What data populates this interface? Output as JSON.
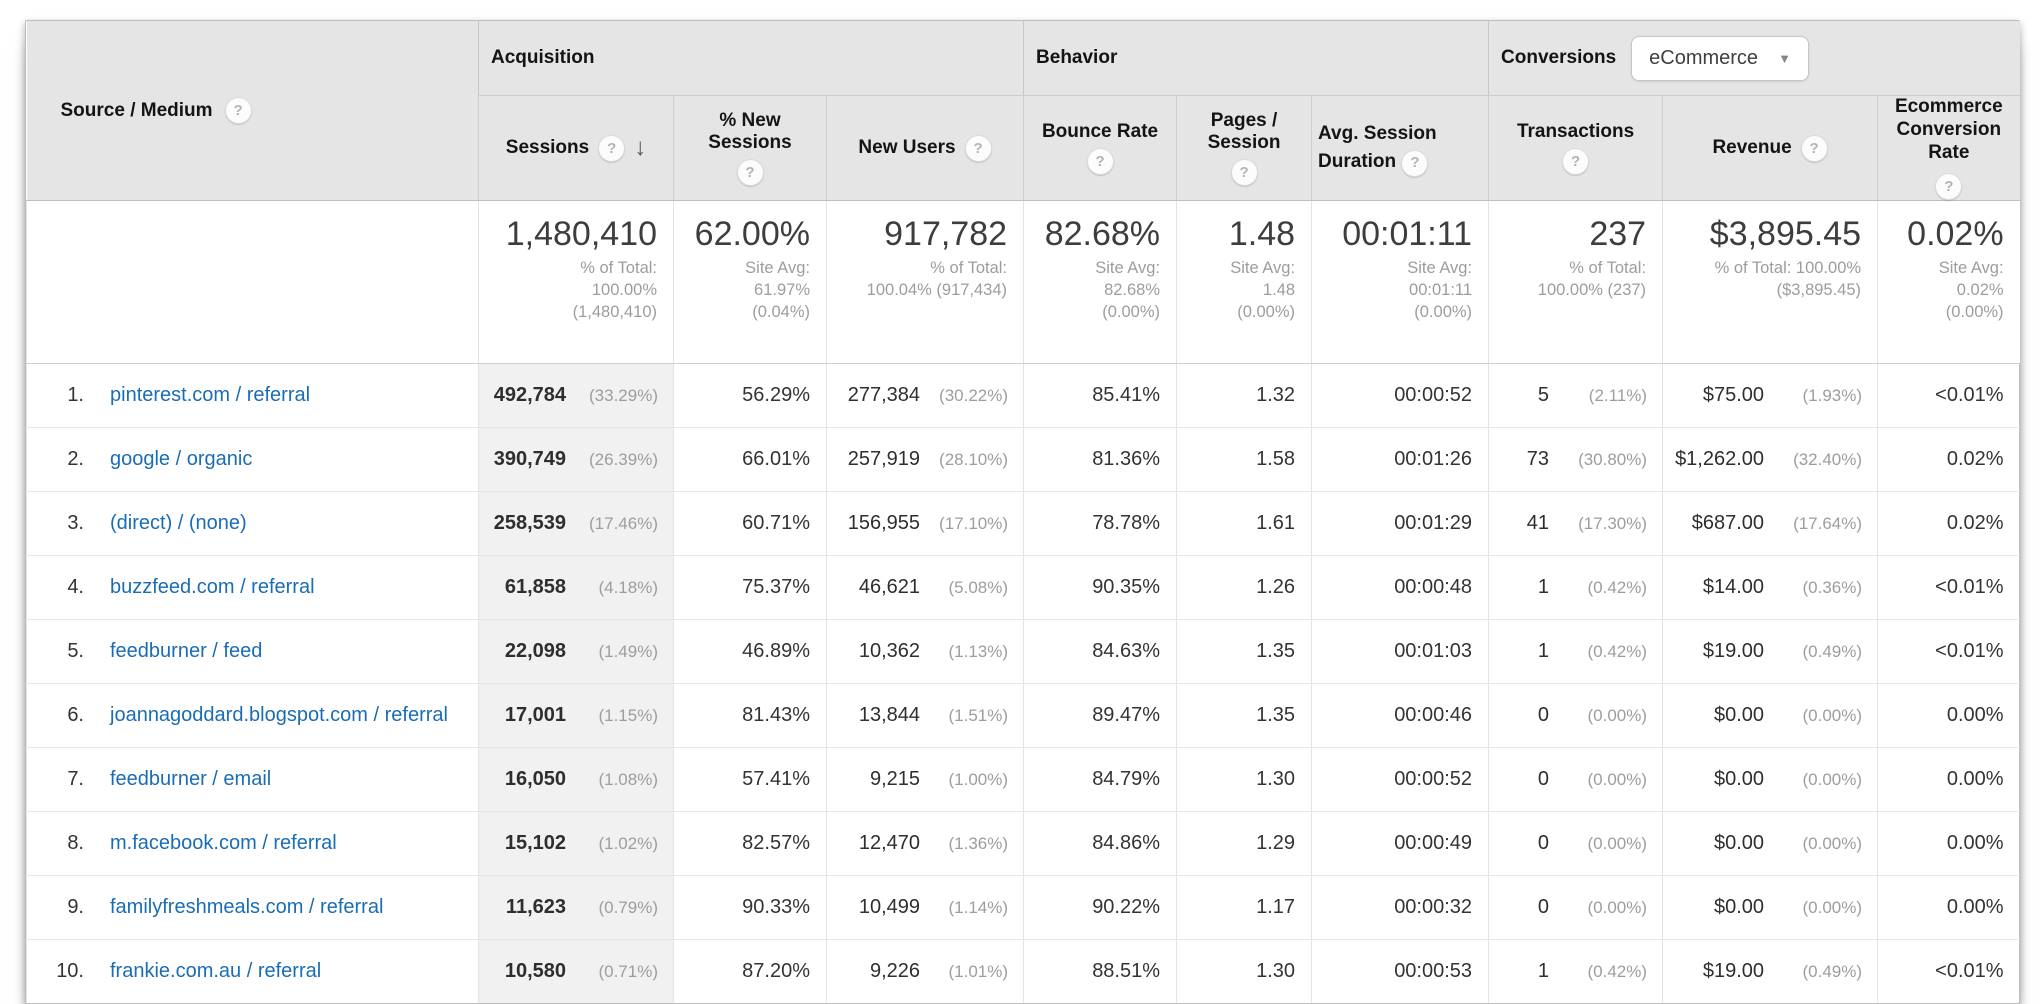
{
  "icons": {
    "help": "?",
    "sort_desc": "↓",
    "caret_down": "▼"
  },
  "table": {
    "dimension_header": "Source / Medium",
    "groups": [
      {
        "label": "Acquisition"
      },
      {
        "label": "Behavior"
      },
      {
        "label": "Conversions",
        "selector_label": "eCommerce"
      }
    ],
    "columns": [
      {
        "label": "Sessions",
        "sorted": "desc"
      },
      {
        "label": "% New Sessions"
      },
      {
        "label": "New Users"
      },
      {
        "label": "Bounce Rate"
      },
      {
        "label": "Pages / Session"
      },
      {
        "label": "Avg. Session Duration"
      },
      {
        "label": "Transactions"
      },
      {
        "label": "Revenue"
      },
      {
        "label": "Ecommerce Conversion Rate"
      }
    ],
    "summary": {
      "sessions": {
        "value": "1,480,410",
        "note_lines": [
          "% of Total:",
          "100.00%",
          "(1,480,410)"
        ]
      },
      "pct_new_sessions": {
        "value": "62.00%",
        "note_lines": [
          "Site Avg:",
          "61.97%",
          "(0.04%)"
        ]
      },
      "new_users": {
        "value": "917,782",
        "note_lines": [
          "% of Total:",
          "100.04% (917,434)"
        ]
      },
      "bounce_rate": {
        "value": "82.68%",
        "note_lines": [
          "Site Avg:",
          "82.68%",
          "(0.00%)"
        ]
      },
      "pages_per_session": {
        "value": "1.48",
        "note_lines": [
          "Site Avg:",
          "1.48",
          "(0.00%)"
        ]
      },
      "avg_session_duration": {
        "value": "00:01:11",
        "note_lines": [
          "Site Avg:",
          "00:01:11",
          "(0.00%)"
        ]
      },
      "transactions": {
        "value": "237",
        "note_lines": [
          "% of Total:",
          "100.00% (237)"
        ]
      },
      "revenue": {
        "value": "$3,895.45",
        "note_lines": [
          "% of Total: 100.00%",
          "($3,895.45)"
        ]
      },
      "ecommerce_conversion_rate": {
        "value": "0.02%",
        "note_lines": [
          "Site Avg:",
          "0.02%",
          "(0.00%)"
        ]
      }
    },
    "rows": [
      {
        "rank": "1.",
        "source_medium": "pinterest.com / referral",
        "sessions": "492,784",
        "sessions_pct": "(33.29%)",
        "pct_new_sessions": "56.29%",
        "new_users": "277,384",
        "new_users_pct": "(30.22%)",
        "bounce_rate": "85.41%",
        "pages_per_session": "1.32",
        "avg_session_duration": "00:00:52",
        "transactions": "5",
        "transactions_pct": "(2.11%)",
        "revenue": "$75.00",
        "revenue_pct": "(1.93%)",
        "ecommerce_conversion_rate": "<0.01%"
      },
      {
        "rank": "2.",
        "source_medium": "google / organic",
        "sessions": "390,749",
        "sessions_pct": "(26.39%)",
        "pct_new_sessions": "66.01%",
        "new_users": "257,919",
        "new_users_pct": "(28.10%)",
        "bounce_rate": "81.36%",
        "pages_per_session": "1.58",
        "avg_session_duration": "00:01:26",
        "transactions": "73",
        "transactions_pct": "(30.80%)",
        "revenue": "$1,262.00",
        "revenue_pct": "(32.40%)",
        "ecommerce_conversion_rate": "0.02%"
      },
      {
        "rank": "3.",
        "source_medium": "(direct) / (none)",
        "sessions": "258,539",
        "sessions_pct": "(17.46%)",
        "pct_new_sessions": "60.71%",
        "new_users": "156,955",
        "new_users_pct": "(17.10%)",
        "bounce_rate": "78.78%",
        "pages_per_session": "1.61",
        "avg_session_duration": "00:01:29",
        "transactions": "41",
        "transactions_pct": "(17.30%)",
        "revenue": "$687.00",
        "revenue_pct": "(17.64%)",
        "ecommerce_conversion_rate": "0.02%"
      },
      {
        "rank": "4.",
        "source_medium": "buzzfeed.com / referral",
        "sessions": "61,858",
        "sessions_pct": "(4.18%)",
        "pct_new_sessions": "75.37%",
        "new_users": "46,621",
        "new_users_pct": "(5.08%)",
        "bounce_rate": "90.35%",
        "pages_per_session": "1.26",
        "avg_session_duration": "00:00:48",
        "transactions": "1",
        "transactions_pct": "(0.42%)",
        "revenue": "$14.00",
        "revenue_pct": "(0.36%)",
        "ecommerce_conversion_rate": "<0.01%"
      },
      {
        "rank": "5.",
        "source_medium": "feedburner / feed",
        "sessions": "22,098",
        "sessions_pct": "(1.49%)",
        "pct_new_sessions": "46.89%",
        "new_users": "10,362",
        "new_users_pct": "(1.13%)",
        "bounce_rate": "84.63%",
        "pages_per_session": "1.35",
        "avg_session_duration": "00:01:03",
        "transactions": "1",
        "transactions_pct": "(0.42%)",
        "revenue": "$19.00",
        "revenue_pct": "(0.49%)",
        "ecommerce_conversion_rate": "<0.01%"
      },
      {
        "rank": "6.",
        "source_medium": "joannagoddard.blogspot.com / referral",
        "sessions": "17,001",
        "sessions_pct": "(1.15%)",
        "pct_new_sessions": "81.43%",
        "new_users": "13,844",
        "new_users_pct": "(1.51%)",
        "bounce_rate": "89.47%",
        "pages_per_session": "1.35",
        "avg_session_duration": "00:00:46",
        "transactions": "0",
        "transactions_pct": "(0.00%)",
        "revenue": "$0.00",
        "revenue_pct": "(0.00%)",
        "ecommerce_conversion_rate": "0.00%"
      },
      {
        "rank": "7.",
        "source_medium": "feedburner / email",
        "sessions": "16,050",
        "sessions_pct": "(1.08%)",
        "pct_new_sessions": "57.41%",
        "new_users": "9,215",
        "new_users_pct": "(1.00%)",
        "bounce_rate": "84.79%",
        "pages_per_session": "1.30",
        "avg_session_duration": "00:00:52",
        "transactions": "0",
        "transactions_pct": "(0.00%)",
        "revenue": "$0.00",
        "revenue_pct": "(0.00%)",
        "ecommerce_conversion_rate": "0.00%"
      },
      {
        "rank": "8.",
        "source_medium": "m.facebook.com / referral",
        "sessions": "15,102",
        "sessions_pct": "(1.02%)",
        "pct_new_sessions": "82.57%",
        "new_users": "12,470",
        "new_users_pct": "(1.36%)",
        "bounce_rate": "84.86%",
        "pages_per_session": "1.29",
        "avg_session_duration": "00:00:49",
        "transactions": "0",
        "transactions_pct": "(0.00%)",
        "revenue": "$0.00",
        "revenue_pct": "(0.00%)",
        "ecommerce_conversion_rate": "0.00%"
      },
      {
        "rank": "9.",
        "source_medium": "familyfreshmeals.com / referral",
        "sessions": "11,623",
        "sessions_pct": "(0.79%)",
        "pct_new_sessions": "90.33%",
        "new_users": "10,499",
        "new_users_pct": "(1.14%)",
        "bounce_rate": "90.22%",
        "pages_per_session": "1.17",
        "avg_session_duration": "00:00:32",
        "transactions": "0",
        "transactions_pct": "(0.00%)",
        "revenue": "$0.00",
        "revenue_pct": "(0.00%)",
        "ecommerce_conversion_rate": "0.00%"
      },
      {
        "rank": "10.",
        "source_medium": "frankie.com.au / referral",
        "sessions": "10,580",
        "sessions_pct": "(0.71%)",
        "pct_new_sessions": "87.20%",
        "new_users": "9,226",
        "new_users_pct": "(1.01%)",
        "bounce_rate": "88.51%",
        "pages_per_session": "1.30",
        "avg_session_duration": "00:00:53",
        "transactions": "1",
        "transactions_pct": "(0.42%)",
        "revenue": "$19.00",
        "revenue_pct": "(0.49%)",
        "ecommerce_conversion_rate": "<0.01%"
      }
    ]
  }
}
